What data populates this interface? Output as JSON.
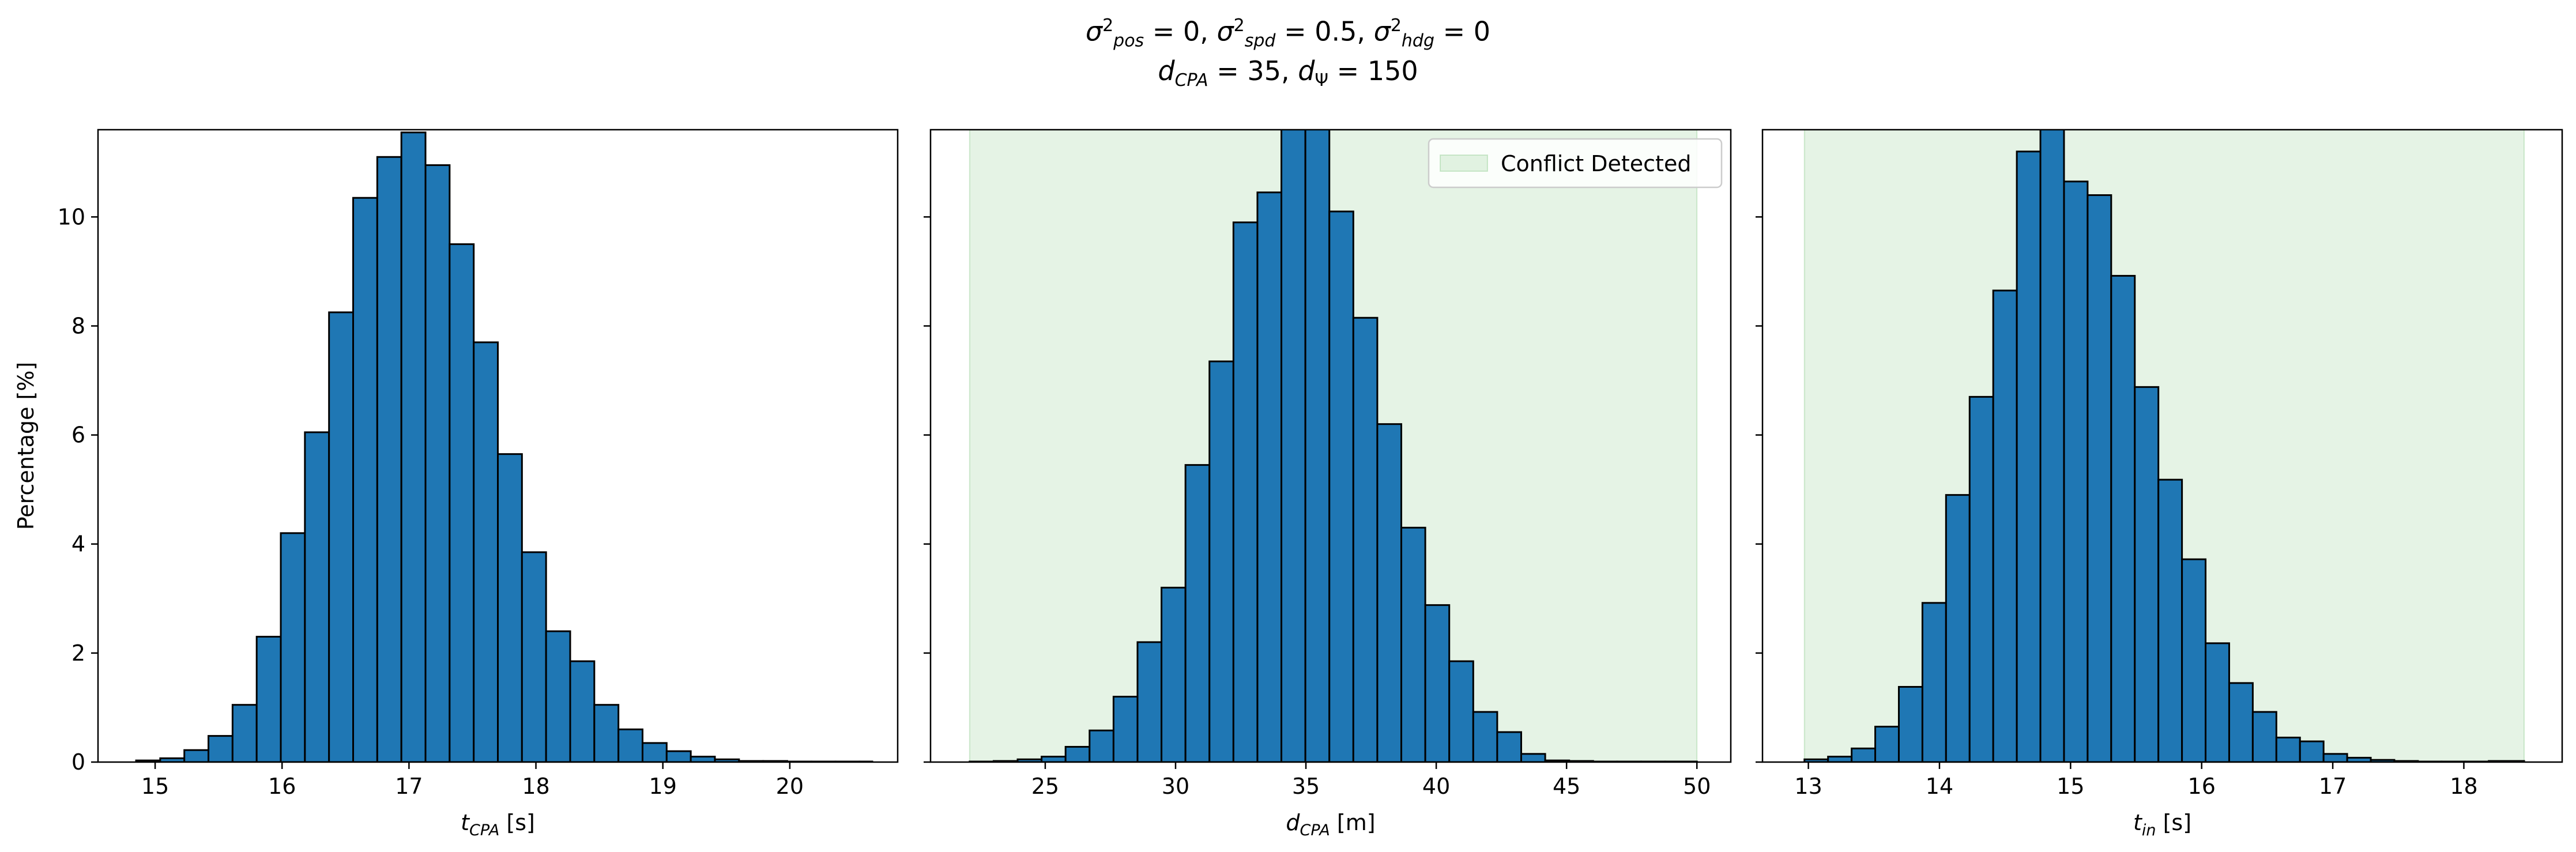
{
  "figure": {
    "suptitle_line1": {
      "sigma": "σ",
      "sq": "2",
      "pos_sub": "pos",
      "pos_val": " = 0, ",
      "spd_sub": "spd",
      "spd_val": " = 0.5, ",
      "hdg_sub": "hdg",
      "hdg_val": " = 0"
    },
    "suptitle_line2": {
      "d": "d",
      "cpa_sub": "CPA",
      "cpa_val": " = 35, ",
      "psi_sub": "Ψ",
      "psi_val": " = 150"
    }
  },
  "colors": {
    "bar_fill": "#1f77b4",
    "bar_edge": "#000000",
    "conflict_fill": "#2ca02c"
  },
  "chart_data": [
    {
      "type": "bar",
      "subtype": "histogram",
      "title": "",
      "xlabel": {
        "main": "t",
        "sub": "CPA",
        "unit": " [s]"
      },
      "ylabel": "Percentage [%]",
      "xlim": [
        14.55,
        20.85
      ],
      "ylim": [
        0,
        11.6
      ],
      "xticks": [
        15,
        16,
        17,
        18,
        19,
        20
      ],
      "yticks": [
        0,
        2,
        4,
        6,
        8,
        10
      ],
      "bin_edges": [
        14.85,
        15.04,
        15.23,
        15.42,
        15.61,
        15.8,
        15.99,
        16.18,
        16.37,
        16.56,
        16.75,
        16.94,
        17.13,
        17.32,
        17.51,
        17.7,
        17.89,
        18.08,
        18.27,
        18.46,
        18.65,
        18.84,
        19.03,
        19.22,
        19.41,
        19.6,
        19.79,
        19.98,
        20.17,
        20.36,
        20.55,
        20.65
      ],
      "values": [
        0.03,
        0.07,
        0.22,
        0.48,
        1.05,
        2.3,
        4.2,
        6.05,
        8.25,
        10.35,
        11.1,
        11.55,
        10.95,
        9.5,
        7.7,
        5.65,
        3.85,
        2.4,
        1.85,
        1.05,
        0.6,
        0.35,
        0.2,
        0.1,
        0.05,
        0.02,
        0.02,
        0.01,
        0.01,
        0.01,
        0.01
      ],
      "shaded_region": null,
      "legend": null
    },
    {
      "type": "bar",
      "subtype": "histogram",
      "title": "",
      "xlabel": {
        "main": "d",
        "sub": "CPA",
        "unit": " [m]"
      },
      "ylabel": "",
      "xlim": [
        20.6,
        51.3
      ],
      "ylim": [
        0,
        11.6
      ],
      "xticks": [
        25,
        30,
        35,
        40,
        45,
        50
      ],
      "yticks": [
        0,
        2,
        4,
        6,
        8,
        10
      ],
      "bin_edges": [
        22.1,
        23.02,
        23.94,
        24.86,
        25.78,
        26.7,
        27.62,
        28.54,
        29.46,
        30.38,
        31.3,
        32.22,
        33.14,
        34.06,
        34.98,
        35.9,
        36.82,
        37.74,
        38.66,
        39.58,
        40.5,
        41.42,
        42.34,
        43.26,
        44.18,
        45.1,
        46.02,
        46.94,
        47.86,
        48.78,
        50.0
      ],
      "values": [
        0.01,
        0.02,
        0.05,
        0.1,
        0.28,
        0.58,
        1.2,
        2.2,
        3.2,
        5.45,
        7.35,
        9.9,
        10.45,
        11.7,
        11.7,
        10.1,
        8.15,
        6.2,
        4.3,
        2.88,
        1.85,
        0.92,
        0.55,
        0.15,
        0.03,
        0.02,
        0.01,
        0.01,
        0.01,
        0.01
      ],
      "shaded_region": [
        22.1,
        50.0
      ],
      "legend": {
        "label": "Conflict Detected",
        "placement": "upper right"
      }
    },
    {
      "type": "bar",
      "subtype": "histogram",
      "title": "",
      "xlabel": {
        "main": "t",
        "sub": "in",
        "unit": " [s]"
      },
      "ylabel": "",
      "xlim": [
        12.65,
        18.75
      ],
      "ylim": [
        0,
        11.6
      ],
      "xticks": [
        13,
        14,
        15,
        16,
        17,
        18
      ],
      "yticks": [
        0,
        2,
        4,
        6,
        8,
        10
      ],
      "bin_edges": [
        12.97,
        13.15,
        13.33,
        13.51,
        13.69,
        13.87,
        14.05,
        14.23,
        14.41,
        14.59,
        14.77,
        14.95,
        15.13,
        15.31,
        15.49,
        15.67,
        15.85,
        16.03,
        16.21,
        16.39,
        16.57,
        16.75,
        16.93,
        17.11,
        17.29,
        17.47,
        17.65,
        17.83,
        18.01,
        18.19,
        18.46
      ],
      "values": [
        0.05,
        0.1,
        0.25,
        0.65,
        1.38,
        2.92,
        4.9,
        6.7,
        8.65,
        11.2,
        11.95,
        10.65,
        10.4,
        8.92,
        6.88,
        5.18,
        3.72,
        2.18,
        1.45,
        0.92,
        0.45,
        0.38,
        0.15,
        0.08,
        0.04,
        0.02,
        0.01,
        0.01,
        0.01,
        0.02
      ],
      "shaded_region": [
        12.97,
        18.46
      ],
      "legend": null
    }
  ]
}
